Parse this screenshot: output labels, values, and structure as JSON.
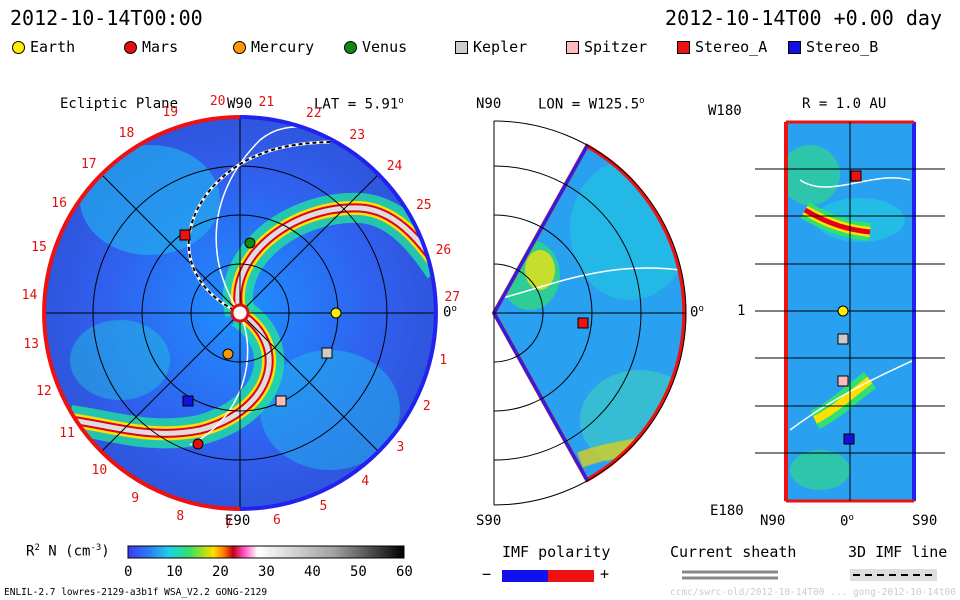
{
  "header": {
    "date_left": "2012-10-14T00:00",
    "date_right": "2012-10-14T00 +0.00 day"
  },
  "legend": [
    {
      "label": "Earth",
      "shape": "circle",
      "color": "#ffee00"
    },
    {
      "label": "Mars",
      "shape": "circle",
      "color": "#e01010"
    },
    {
      "label": "Mercury",
      "shape": "circle",
      "color": "#ff9900"
    },
    {
      "label": "Venus",
      "shape": "circle",
      "color": "#118811"
    },
    {
      "label": "Kepler",
      "shape": "square",
      "color": "#cccccc"
    },
    {
      "label": "Spitzer",
      "shape": "square",
      "color": "#ffbbbb"
    },
    {
      "label": "Stereo_A",
      "shape": "square",
      "color": "#ee1111"
    },
    {
      "label": "Stereo_B",
      "shape": "square",
      "color": "#1111dd"
    }
  ],
  "panels": {
    "ecliptic": {
      "title": "Ecliptic Plane",
      "w90": "W90",
      "lat": "LAT = 5.91",
      "lat_sup": "o",
      "e90": "E90",
      "zero": "0",
      "zero_sup": "o",
      "clock": [
        "1",
        "2",
        "3",
        "4",
        "5",
        "6",
        "7",
        "8",
        "9",
        "10",
        "11",
        "12",
        "13",
        "14",
        "15",
        "16",
        "17",
        "18",
        "19",
        "20",
        "21",
        "22",
        "23",
        "24",
        "25",
        "26",
        "27"
      ]
    },
    "meridional": {
      "n90": "N90",
      "s90": "S90",
      "lon": "LON = W125.5",
      "lon_sup": "o",
      "zero": "0",
      "zero_sup": "o"
    },
    "radius": {
      "title": "R = 1.0 AU",
      "w180": "W180",
      "e180": "E180",
      "one": "1",
      "n90": "N90",
      "zero": "0",
      "zero_sup": "o",
      "s90": "S90"
    }
  },
  "colorbar": {
    "label": "R",
    "label_sup": "2",
    "label_rest": " N (cm",
    "unit_sup": "-3",
    "label_end": ")",
    "ticks": [
      "0",
      "10",
      "20",
      "30",
      "40",
      "50",
      "60"
    ],
    "min": 0,
    "max": 60
  },
  "bottom_legends": {
    "imf": "IMF polarity",
    "minus": "−",
    "plus": "+",
    "sheath": "Current sheath",
    "imf3d": "3D IMF line"
  },
  "footer": {
    "left": "ENLIL-2.7 lowres-2129-a3b1f WSA_V2.2 GONG-2129",
    "right": "ccmc/swrc-old/2012-10-14T00 ... gong-2012-10-14t00"
  }
}
